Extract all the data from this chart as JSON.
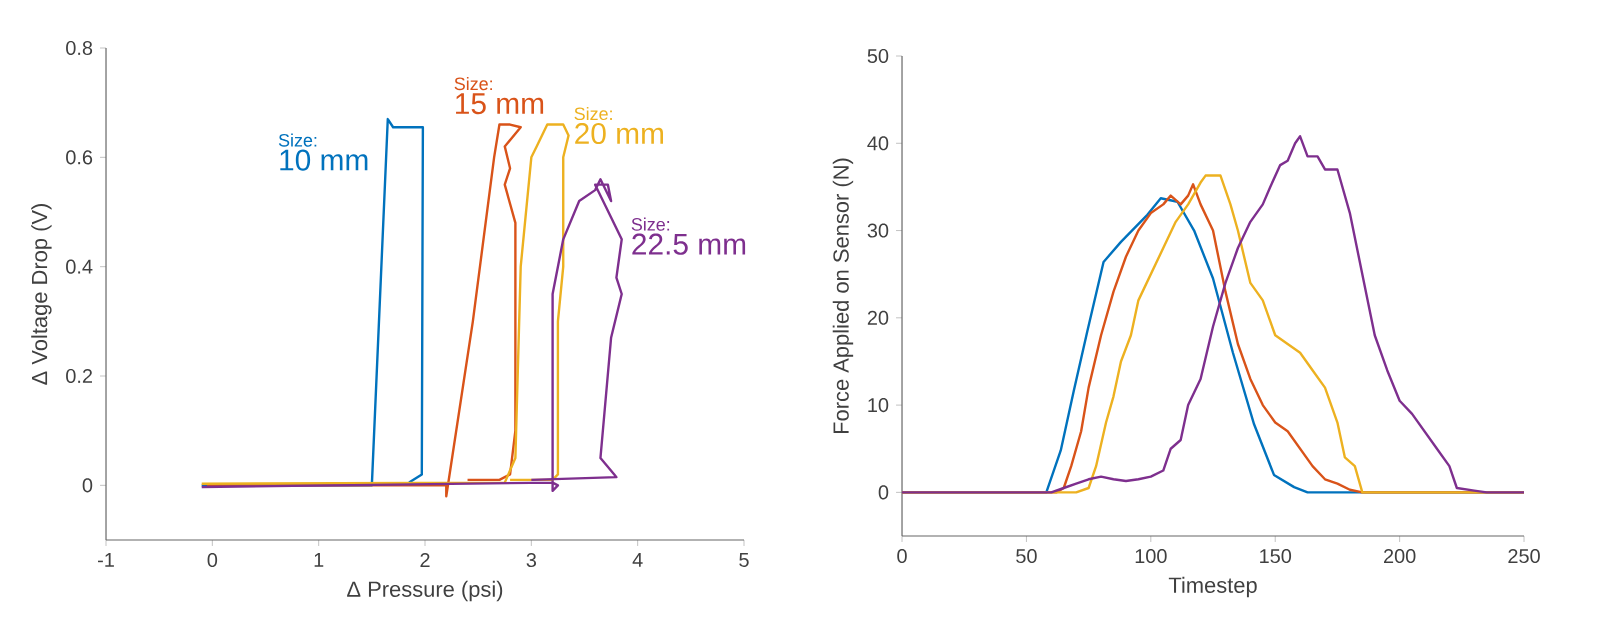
{
  "chart_data": [
    {
      "type": "line",
      "xlabel": "Δ Pressure (psi)",
      "ylabel": "Δ Voltage Drop (V)",
      "xlim": [
        -1,
        5
      ],
      "ylim": [
        -0.1,
        0.8
      ],
      "xticks": [
        -1,
        0,
        1,
        2,
        3,
        4,
        5
      ],
      "yticks": [
        0,
        0.2,
        0.4,
        0.6,
        0.8
      ],
      "grid": false,
      "legend": false,
      "annotations": [
        "Size:",
        "Size:",
        "Size:",
        "Size:"
      ],
      "series": [
        {
          "name": "10 mm",
          "color": "#0072bd",
          "x": [
            -0.1,
            1.5,
            1.65,
            1.7,
            1.98,
            1.97,
            1.85
          ],
          "values": [
            0,
            0,
            0.67,
            0.655,
            0.655,
            0.02,
            0.005
          ]
        },
        {
          "name": "15 mm",
          "color": "#d95319",
          "x": [
            -0.05,
            2.2,
            2.2,
            2.45,
            2.65,
            2.7,
            2.8,
            2.9,
            2.75,
            2.8,
            2.75,
            2.85,
            2.85,
            2.8,
            2.7,
            2.4
          ],
          "values": [
            0,
            0,
            -0.02,
            0.3,
            0.6,
            0.66,
            0.66,
            0.655,
            0.62,
            0.58,
            0.55,
            0.48,
            0.1,
            0.02,
            0.01,
            0.01
          ]
        },
        {
          "name": "20 mm",
          "color": "#edb120",
          "x": [
            -0.1,
            2.75,
            2.85,
            2.9,
            3.0,
            3.05,
            3.1,
            3.15,
            3.3,
            3.35,
            3.3,
            3.3,
            3.25,
            3.25,
            3.2,
            2.8
          ],
          "values": [
            0.003,
            0.005,
            0.05,
            0.4,
            0.6,
            0.62,
            0.64,
            0.66,
            0.66,
            0.64,
            0.6,
            0.4,
            0.3,
            0.02,
            0.01,
            0.01
          ]
        },
        {
          "name": "22.5 mm",
          "color": "#7e2f8e",
          "x": [
            -0.1,
            3.2,
            3.25,
            3.2,
            3.2,
            3.3,
            3.45,
            3.6,
            3.65,
            3.75,
            3.72,
            3.6,
            3.7,
            3.85,
            3.8,
            3.85,
            3.75,
            3.65,
            3.78,
            3.8,
            3.0
          ],
          "values": [
            -0.003,
            0.005,
            0,
            -0.01,
            0.35,
            0.45,
            0.52,
            0.54,
            0.56,
            0.52,
            0.55,
            0.55,
            0.51,
            0.45,
            0.38,
            0.35,
            0.27,
            0.05,
            0.02,
            0.015,
            0.01
          ]
        }
      ]
    },
    {
      "type": "line",
      "xlabel": "Timestep",
      "ylabel": "Force Applied on Sensor (N)",
      "xlim": [
        0,
        250
      ],
      "ylim": [
        -5,
        50
      ],
      "xticks": [
        0,
        50,
        100,
        150,
        200,
        250
      ],
      "yticks": [
        0,
        10,
        20,
        30,
        40,
        50
      ],
      "grid": false,
      "legend": false,
      "series": [
        {
          "color": "#0072bd",
          "x": [
            0,
            58,
            63.8,
            69,
            74.5,
            81,
            88,
            98.6,
            104,
            110.7,
            117.4,
            125,
            133,
            141.5,
            149.5,
            157.6,
            163,
            250
          ],
          "values": [
            0,
            0,
            4.8,
            11.6,
            18.5,
            26.4,
            28.7,
            31.8,
            33.7,
            33.3,
            30,
            24.5,
            16,
            7.8,
            2,
            0.6,
            0,
            0
          ]
        },
        {
          "color": "#d95319",
          "x": [
            0,
            62,
            65,
            68,
            72,
            75,
            80,
            85,
            90,
            95,
            100,
            105,
            108,
            112,
            115,
            117,
            120,
            125,
            130,
            135,
            140,
            145,
            150,
            155,
            160,
            165,
            170,
            175,
            180,
            185,
            250
          ],
          "values": [
            0,
            0,
            0.5,
            3,
            7,
            12,
            18,
            23,
            27,
            30,
            32,
            33,
            34,
            33,
            34,
            35.3,
            33,
            30,
            23,
            17,
            13,
            10,
            8,
            7,
            5,
            3,
            1.5,
            1,
            0.3,
            0,
            0
          ]
        },
        {
          "color": "#edb120",
          "x": [
            0,
            70,
            75,
            78,
            82,
            85,
            88,
            92,
            95,
            100,
            105,
            110,
            115,
            120,
            122,
            128,
            132,
            135,
            140,
            145,
            150,
            155,
            160,
            165,
            170,
            175,
            178,
            182,
            185,
            250
          ],
          "values": [
            0,
            0,
            0.5,
            3,
            8,
            11,
            15,
            18,
            22,
            25,
            28,
            31,
            33,
            35.5,
            36.3,
            36.3,
            33,
            30,
            24,
            22,
            18,
            17,
            16,
            14,
            12,
            8,
            4,
            3,
            0,
            0
          ]
        },
        {
          "color": "#7e2f8e",
          "x": [
            0,
            60,
            65,
            70,
            75,
            80,
            85,
            90,
            95,
            100,
            105,
            108,
            112,
            115,
            120,
            125,
            130,
            135,
            140,
            145,
            148,
            152,
            155,
            158,
            160,
            163,
            167,
            170,
            175,
            180,
            185,
            190,
            195,
            200,
            205,
            210,
            215,
            220,
            223,
            230,
            235,
            250
          ],
          "values": [
            0,
            0,
            0.5,
            1,
            1.5,
            1.8,
            1.5,
            1.3,
            1.5,
            1.8,
            2.5,
            5,
            6,
            10,
            13,
            19,
            24,
            28,
            31,
            33,
            35,
            37.5,
            38,
            40,
            40.8,
            38.5,
            38.5,
            37,
            37,
            32,
            25,
            18,
            14,
            10.5,
            9,
            7,
            5,
            3,
            0.5,
            0.2,
            0,
            0
          ]
        }
      ]
    }
  ]
}
